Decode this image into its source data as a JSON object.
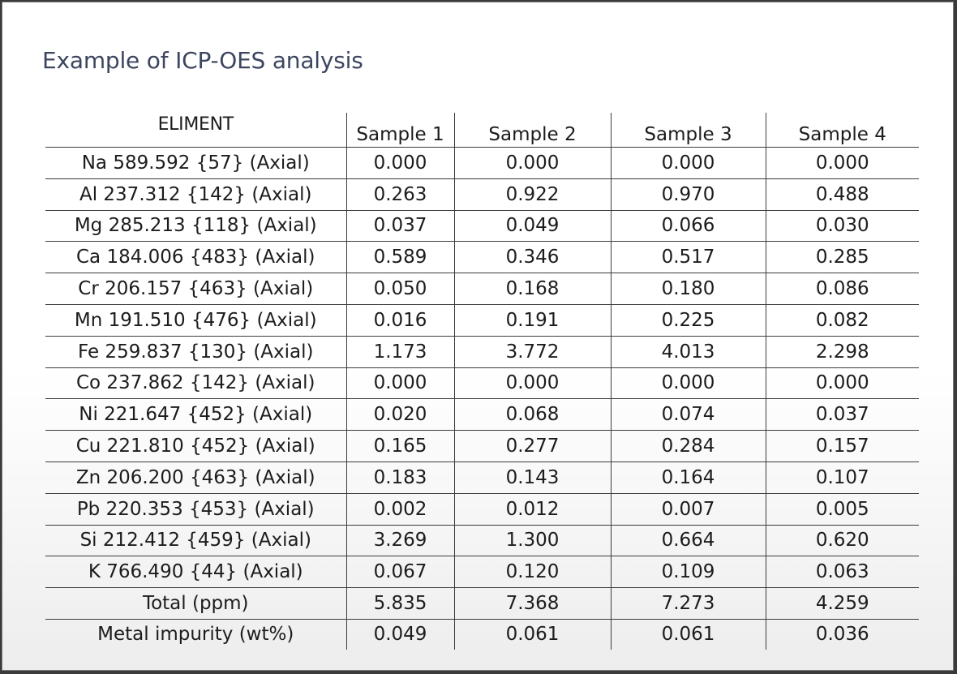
{
  "title": "Example of ICP-OES analysis",
  "table": {
    "headers": [
      "ELIMENT",
      "Sample 1",
      "Sample 2",
      "Sample 3",
      "Sample 4"
    ],
    "rows": [
      [
        "Na 589.592 {57} (Axial)",
        "0.000",
        "0.000",
        "0.000",
        "0.000"
      ],
      [
        "Al 237.312 {142} (Axial)",
        "0.263",
        "0.922",
        "0.970",
        "0.488"
      ],
      [
        "Mg 285.213 {118} (Axial)",
        "0.037",
        "0.049",
        "0.066",
        "0.030"
      ],
      [
        "Ca 184.006 {483} (Axial)",
        "0.589",
        "0.346",
        "0.517",
        "0.285"
      ],
      [
        "Cr 206.157 {463} (Axial)",
        "0.050",
        "0.168",
        "0.180",
        "0.086"
      ],
      [
        "Mn 191.510 {476} (Axial)",
        "0.016",
        "0.191",
        "0.225",
        "0.082"
      ],
      [
        "Fe 259.837 {130} (Axial)",
        "1.173",
        "3.772",
        "4.013",
        "2.298"
      ],
      [
        "Co 237.862 {142} (Axial)",
        "0.000",
        "0.000",
        "0.000",
        "0.000"
      ],
      [
        "Ni 221.647 {452} (Axial)",
        "0.020",
        "0.068",
        "0.074",
        "0.037"
      ],
      [
        "Cu 221.810 {452} (Axial)",
        "0.165",
        "0.277",
        "0.284",
        "0.157"
      ],
      [
        "Zn 206.200 {463} (Axial)",
        "0.183",
        "0.143",
        "0.164",
        "0.107"
      ],
      [
        "Pb 220.353 {453} (Axial)",
        "0.002",
        "0.012",
        "0.007",
        "0.005"
      ],
      [
        "Si 212.412 {459} (Axial)",
        "3.269",
        "1.300",
        "0.664",
        "0.620"
      ],
      [
        "K 766.490 {44} (Axial)",
        "0.067",
        "0.120",
        "0.109",
        "0.063"
      ],
      [
        "Total (ppm)",
        "5.835",
        "7.368",
        "7.273",
        "4.259"
      ],
      [
        "Metal impurity (wt%)",
        "0.049",
        "0.061",
        "0.061",
        "0.036"
      ]
    ]
  }
}
